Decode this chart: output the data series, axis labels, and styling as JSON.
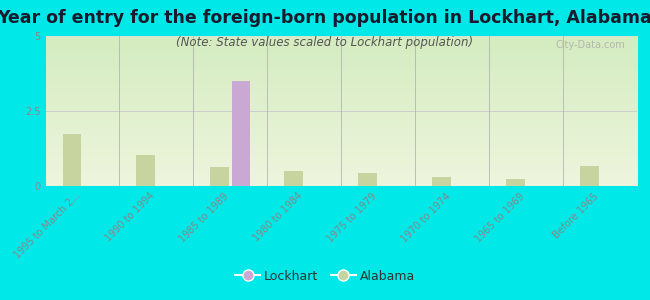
{
  "title": "Year of entry for the foreign-born population in Lockhart, Alabama",
  "subtitle": "(Note: State values scaled to Lockhart population)",
  "categories": [
    "1995 to March 2...",
    "1990 to 1994",
    "1985 to 1989",
    "1980 to 1984",
    "1975 to 1979",
    "1970 to 1974",
    "1965 to 1969",
    "Before 1965"
  ],
  "lockhart_values": [
    0,
    0,
    3.5,
    0,
    0,
    0,
    0,
    0
  ],
  "alabama_values": [
    1.72,
    1.02,
    0.62,
    0.5,
    0.45,
    0.3,
    0.22,
    0.68
  ],
  "lockhart_color": "#c9a8d4",
  "alabama_color": "#c8d4a0",
  "bg_outer": "#00e8e8",
  "ylim": [
    0,
    5
  ],
  "yticks": [
    0,
    2.5,
    5
  ],
  "bar_width": 0.25,
  "title_fontsize": 12.5,
  "subtitle_fontsize": 8.5,
  "tick_fontsize": 7,
  "watermark": "City-Data.com",
  "title_color": "#1a1a2e",
  "subtitle_color": "#555555",
  "tick_color": "#888888"
}
